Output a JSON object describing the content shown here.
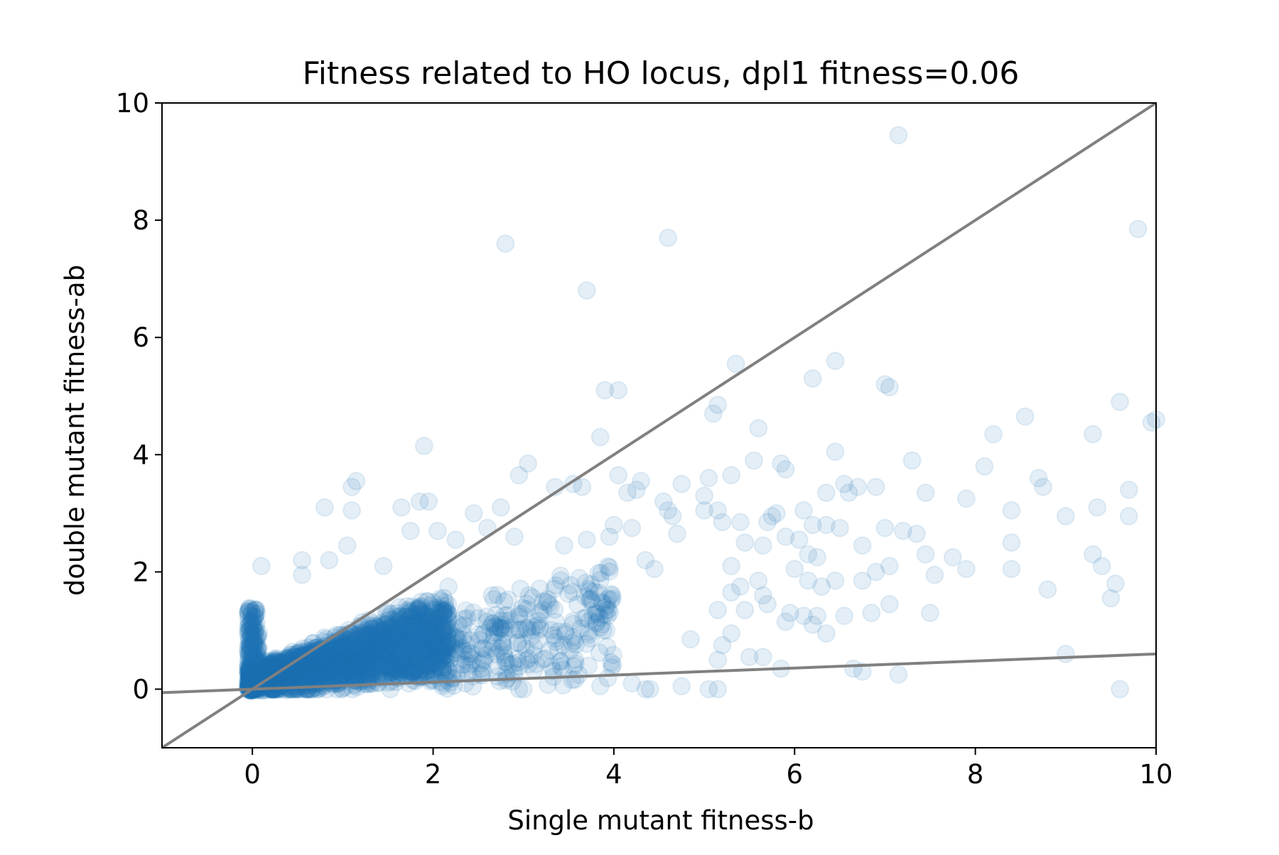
{
  "chart_data": {
    "type": "scatter",
    "title": "Fitness related to HO locus, dpl1 fitness=0.06",
    "xlabel": "Single mutant fitness-b",
    "ylabel": "double mutant fitness-ab",
    "xlim": [
      -1,
      10
    ],
    "ylim": [
      -1,
      10
    ],
    "xticks": [
      0,
      2,
      4,
      6,
      8,
      10
    ],
    "yticks": [
      0,
      2,
      4,
      6,
      8,
      10
    ],
    "grid": false,
    "legend": "none",
    "colors": {
      "points": "#1f77b4",
      "reference_lines": "#808080",
      "axes": "#000000"
    },
    "point_alpha": 0.12,
    "reference_lines": [
      {
        "x": [
          -1,
          10
        ],
        "y": [
          -1,
          10
        ]
      },
      {
        "x": [
          -1,
          10
        ],
        "y": [
          -0.06,
          0.6
        ]
      }
    ],
    "outliers": [
      [
        7.15,
        9.45
      ],
      [
        2.8,
        7.6
      ],
      [
        4.6,
        7.7
      ],
      [
        9.8,
        7.85
      ],
      [
        3.7,
        6.8
      ],
      [
        5.35,
        5.55
      ],
      [
        6.45,
        5.6
      ],
      [
        6.2,
        5.3
      ],
      [
        7.0,
        5.2
      ],
      [
        7.05,
        5.15
      ],
      [
        3.9,
        5.1
      ],
      [
        4.05,
        5.1
      ],
      [
        5.15,
        4.85
      ],
      [
        5.1,
        4.7
      ],
      [
        9.6,
        4.9
      ],
      [
        9.95,
        4.55
      ],
      [
        10.0,
        4.6
      ],
      [
        8.55,
        4.65
      ],
      [
        5.6,
        4.45
      ],
      [
        8.2,
        4.35
      ],
      [
        9.3,
        4.35
      ],
      [
        3.85,
        4.3
      ],
      [
        1.9,
        4.15
      ],
      [
        6.45,
        4.05
      ],
      [
        5.55,
        3.9
      ],
      [
        5.85,
        3.85
      ],
      [
        7.3,
        3.9
      ],
      [
        5.9,
        3.75
      ],
      [
        8.1,
        3.8
      ],
      [
        3.05,
        3.85
      ],
      [
        2.95,
        3.65
      ],
      [
        4.05,
        3.65
      ],
      [
        5.3,
        3.65
      ],
      [
        5.05,
        3.6
      ],
      [
        1.15,
        3.55
      ],
      [
        4.3,
        3.55
      ],
      [
        4.75,
        3.5
      ],
      [
        8.7,
        3.6
      ],
      [
        8.75,
        3.45
      ],
      [
        3.35,
        3.45
      ],
      [
        3.55,
        3.5
      ],
      [
        3.65,
        3.45
      ],
      [
        6.55,
        3.5
      ],
      [
        6.7,
        3.45
      ],
      [
        6.9,
        3.45
      ],
      [
        1.1,
        3.45
      ],
      [
        9.7,
        3.4
      ],
      [
        6.35,
        3.35
      ],
      [
        7.45,
        3.35
      ],
      [
        4.15,
        3.35
      ],
      [
        4.25,
        3.4
      ],
      [
        5.0,
        3.3
      ],
      [
        6.6,
        3.35
      ],
      [
        4.55,
        3.2
      ],
      [
        4.6,
        3.05
      ],
      [
        1.85,
        3.2
      ],
      [
        1.95,
        3.2
      ],
      [
        1.65,
        3.1
      ],
      [
        2.75,
        3.1
      ],
      [
        0.8,
        3.1
      ],
      [
        1.1,
        3.05
      ],
      [
        2.45,
        3.0
      ],
      [
        5.0,
        3.05
      ],
      [
        5.15,
        3.05
      ],
      [
        6.1,
        3.05
      ],
      [
        9.35,
        3.1
      ],
      [
        5.8,
        3.0
      ],
      [
        7.9,
        3.25
      ],
      [
        8.4,
        3.05
      ],
      [
        9.0,
        2.95
      ],
      [
        9.7,
        2.95
      ],
      [
        4.65,
        2.95
      ],
      [
        5.7,
        2.85
      ],
      [
        5.4,
        2.85
      ],
      [
        6.2,
        2.8
      ],
      [
        6.35,
        2.8
      ],
      [
        6.5,
        2.75
      ],
      [
        7.0,
        2.75
      ],
      [
        7.2,
        2.7
      ],
      [
        7.35,
        2.65
      ],
      [
        4.0,
        2.8
      ],
      [
        4.2,
        2.75
      ],
      [
        4.7,
        2.65
      ],
      [
        5.2,
        2.85
      ],
      [
        5.75,
        2.95
      ],
      [
        6.05,
        2.55
      ],
      [
        5.9,
        2.6
      ],
      [
        5.45,
        2.5
      ],
      [
        5.65,
        2.45
      ],
      [
        6.75,
        2.45
      ],
      [
        8.4,
        2.5
      ],
      [
        7.45,
        2.3
      ],
      [
        7.75,
        2.25
      ],
      [
        9.3,
        2.3
      ],
      [
        9.4,
        2.1
      ],
      [
        7.05,
        2.1
      ],
      [
        7.55,
        1.95
      ],
      [
        7.9,
        2.05
      ],
      [
        6.9,
        2.0
      ],
      [
        8.4,
        2.05
      ],
      [
        6.15,
        2.3
      ],
      [
        6.25,
        2.25
      ],
      [
        5.3,
        2.1
      ],
      [
        6.0,
        2.05
      ],
      [
        6.15,
        1.85
      ],
      [
        6.3,
        1.75
      ],
      [
        6.45,
        1.85
      ],
      [
        6.75,
        1.85
      ],
      [
        5.6,
        1.85
      ],
      [
        5.65,
        1.6
      ],
      [
        5.4,
        1.75
      ],
      [
        5.3,
        1.65
      ],
      [
        9.55,
        1.8
      ],
      [
        9.5,
        1.55
      ],
      [
        8.8,
        1.7
      ],
      [
        5.7,
        1.45
      ],
      [
        5.95,
        1.3
      ],
      [
        5.9,
        1.15
      ],
      [
        6.1,
        1.25
      ],
      [
        6.25,
        1.25
      ],
      [
        6.2,
        1.1
      ],
      [
        6.55,
        1.25
      ],
      [
        6.85,
        1.3
      ],
      [
        7.05,
        1.45
      ],
      [
        7.5,
        1.3
      ],
      [
        6.35,
        0.95
      ],
      [
        5.45,
        1.35
      ],
      [
        5.15,
        1.35
      ],
      [
        5.3,
        0.95
      ],
      [
        5.2,
        0.75
      ],
      [
        5.15,
        0.5
      ],
      [
        4.85,
        0.85
      ],
      [
        5.5,
        0.55
      ],
      [
        5.65,
        0.55
      ],
      [
        5.85,
        0.35
      ],
      [
        6.65,
        0.35
      ],
      [
        6.75,
        0.3
      ],
      [
        7.15,
        0.25
      ],
      [
        9.0,
        0.6
      ],
      [
        9.6,
        0.0
      ],
      [
        4.4,
        0.0
      ],
      [
        4.35,
        0.0
      ],
      [
        4.2,
        0.1
      ],
      [
        4.75,
        0.05
      ],
      [
        5.05,
        0.0
      ],
      [
        5.15,
        0.0
      ],
      [
        3.0,
        0.0
      ],
      [
        2.95,
        0.0
      ],
      [
        3.85,
        0.05
      ],
      [
        0.55,
        2.2
      ],
      [
        0.85,
        2.2
      ],
      [
        0.1,
        2.1
      ],
      [
        0.55,
        1.95
      ],
      [
        1.05,
        2.45
      ],
      [
        1.45,
        2.1
      ],
      [
        1.75,
        2.7
      ],
      [
        2.05,
        2.7
      ],
      [
        2.25,
        2.55
      ],
      [
        2.6,
        2.75
      ],
      [
        2.9,
        2.6
      ],
      [
        3.45,
        2.45
      ],
      [
        3.7,
        2.55
      ],
      [
        3.95,
        2.6
      ],
      [
        4.35,
        2.2
      ],
      [
        4.45,
        2.05
      ]
    ]
  }
}
